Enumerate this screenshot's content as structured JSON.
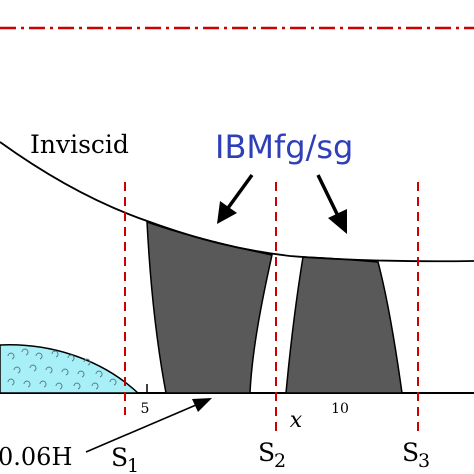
{
  "labels": {
    "inviscid": "Inviscid",
    "method": "IBMfg/sg",
    "gap": "0.06H",
    "x_axis": "x",
    "s1_letter": "S",
    "s1_sub": "1",
    "s2_letter": "S",
    "s2_sub": "2",
    "s3_letter": "S",
    "s3_sub": "3"
  },
  "ticks": [
    "5",
    "10"
  ],
  "colors": {
    "background": "#ffffff",
    "outline": "#000000",
    "shock_fill": "#595959",
    "bubble_fill": "#a7f0f7",
    "station_line": "#cc0000",
    "top_boundary": "#cc0000",
    "method_label": "#2f3fb8"
  }
}
